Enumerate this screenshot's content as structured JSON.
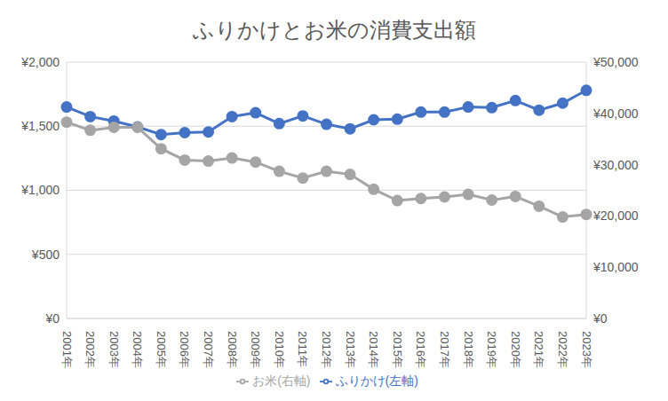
{
  "chart_data": {
    "type": "line",
    "title": "ふりかけとお米の消費支出額",
    "categories": [
      "2001年",
      "2002年",
      "2003年",
      "2004年",
      "2005年",
      "2006年",
      "2007年",
      "2008年",
      "2009年",
      "2010年",
      "2011年",
      "2012年",
      "2013年",
      "2014年",
      "2015年",
      "2016年",
      "2017年",
      "2018年",
      "2019年",
      "2020年",
      "2021年",
      "2022年",
      "2023年"
    ],
    "series": [
      {
        "name": "ふりかけ(左軸)",
        "color": "#4472c4",
        "marker": "circle",
        "values": [
          1650,
          1575,
          1540,
          1495,
          1435,
          1450,
          1455,
          1575,
          1605,
          1520,
          1580,
          1515,
          1480,
          1550,
          1555,
          1610,
          1610,
          1650,
          1645,
          1700,
          1625,
          1680,
          1780
        ]
      },
      {
        "name": "お米(右軸)",
        "color": "#a5a5a5",
        "marker": "circle",
        "axis": "y2",
        "values": [
          38300,
          36700,
          37300,
          37300,
          33100,
          30900,
          30700,
          31300,
          30500,
          28700,
          27400,
          28700,
          28100,
          25200,
          23000,
          23400,
          23700,
          24200,
          23100,
          23800,
          21900,
          19800,
          20300
        ]
      }
    ],
    "ylim": [
      0,
      2000
    ],
    "yticks": [
      {
        "value": 0,
        "label": "¥0"
      },
      {
        "value": 500,
        "label": "¥500"
      },
      {
        "value": 1000,
        "label": "¥1,000"
      },
      {
        "value": 1500,
        "label": "¥1,500"
      },
      {
        "value": 2000,
        "label": "¥2,000"
      }
    ],
    "y2lim": [
      0,
      50000
    ],
    "y2ticks": [
      {
        "value": 0,
        "label": "¥0"
      },
      {
        "value": 10000,
        "label": "¥10,000"
      },
      {
        "value": 20000,
        "label": "¥20,000"
      },
      {
        "value": 30000,
        "label": "¥30,000"
      },
      {
        "value": 40000,
        "label": "¥40,000"
      },
      {
        "value": 50000,
        "label": "¥50,000"
      }
    ],
    "grid": true,
    "legend": "bottom"
  }
}
